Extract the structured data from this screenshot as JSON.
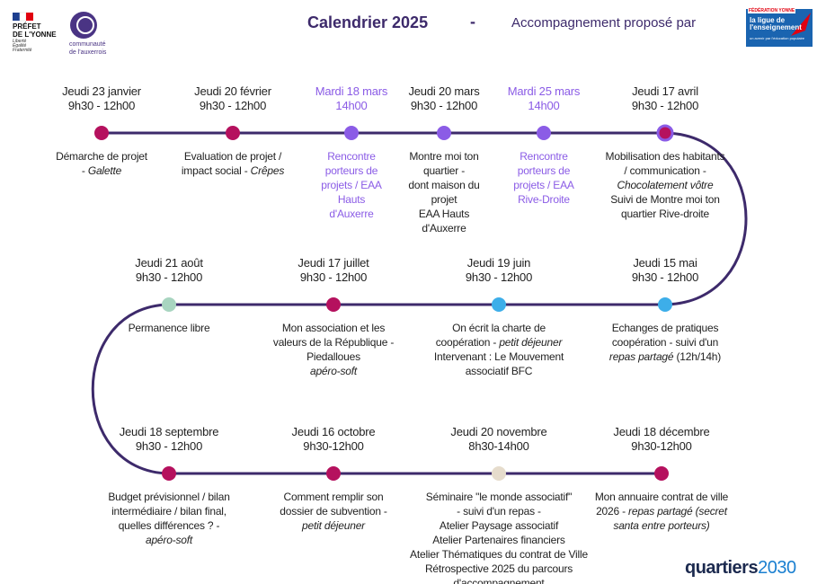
{
  "header": {
    "prefet": [
      "PRÉFET",
      "DE L'YONNE"
    ],
    "devise": [
      "Liberté",
      "Égalité",
      "Fraternité"
    ],
    "communaute": [
      "communauté",
      "de l'auxerrois"
    ],
    "title": "Calendrier 2025",
    "separator": "-",
    "subtitle": "Accompagnement proposé par",
    "ligue": {
      "federation": "FÉDÉRATION YONNE",
      "name": [
        "la ligue de",
        "l'enseignement"
      ],
      "tagline": "un avenir par l'éducation populaire"
    }
  },
  "events": [
    {
      "date": "Jeudi 23 janvier",
      "time": "9h30 - 12h00",
      "dot_color": "#b5115e",
      "text_color": "#222",
      "lines": [
        [
          "Démarche de projet"
        ],
        [
          "- ",
          {
            "italic": "Galette"
          }
        ]
      ]
    },
    {
      "date": "Jeudi 20 février",
      "time": "9h30 - 12h00",
      "dot_color": "#b5115e",
      "text_color": "#222",
      "lines": [
        [
          "Evaluation de projet /"
        ],
        [
          "impact social - ",
          {
            "italic": "Crêpes"
          }
        ]
      ]
    },
    {
      "date": "Mardi 18 mars",
      "time": "14h00",
      "dot_color": "#8b5ce6",
      "text_color": "#8b5ce6",
      "lines": [
        [
          "Rencontre"
        ],
        [
          "porteurs de"
        ],
        [
          "projets /  EAA"
        ],
        [
          "Hauts"
        ],
        [
          "d'Auxerre"
        ]
      ]
    },
    {
      "date": "Jeudi 20 mars",
      "time": "9h30 - 12h00",
      "dot_color": "#8b5ce6",
      "text_color": "#222",
      "lines": [
        [
          "Montre moi ton"
        ],
        [
          "quartier -"
        ],
        [
          "dont maison du"
        ],
        [
          "projet"
        ],
        [
          "EAA Hauts"
        ],
        [
          "d'Auxerre"
        ]
      ]
    },
    {
      "date": "Mardi 25 mars",
      "time": "14h00",
      "dot_color": "#8b5ce6",
      "text_color": "#8b5ce6",
      "lines": [
        [
          "Rencontre"
        ],
        [
          "porteurs de"
        ],
        [
          "projets /  EAA"
        ],
        [
          "Rive-Droite"
        ]
      ]
    },
    {
      "date": "Jeudi 17 avril",
      "time": "9h30 - 12h00",
      "dot_color": "#b5115e",
      "dot_ring": "#8b5ce6",
      "text_color": "#222",
      "lines": [
        [
          "Mobilisation des habitants"
        ],
        [
          "/ communication -"
        ],
        [
          {
            "italic": "Chocolatement vôtre"
          }
        ],
        [
          "Suivi de Montre moi ton"
        ],
        [
          "quartier Rive-droite"
        ]
      ]
    },
    {
      "date": "Jeudi 15 mai",
      "time": "9h30 - 12h00",
      "dot_color": "#3daee9",
      "text_color": "#222",
      "lines": [
        [
          "Echanges de pratiques"
        ],
        [
          "coopération - suivi d'un"
        ],
        [
          {
            "italic": "repas partagé"
          },
          " (12h/14h)"
        ]
      ]
    },
    {
      "date": "Jeudi 19 juin",
      "time": "9h30 - 12h00",
      "dot_color": "#3daee9",
      "text_color": "#222",
      "lines": [
        [
          "On écrit la charte de"
        ],
        [
          "coopération - ",
          {
            "italic": "petit déjeuner"
          }
        ],
        [
          "Intervenant : Le Mouvement"
        ],
        [
          "associatif BFC"
        ]
      ]
    },
    {
      "date": "Jeudi 17 juillet",
      "time": "9h30 - 12h00",
      "dot_color": "#b5115e",
      "text_color": "#222",
      "lines": [
        [
          "Mon association et les"
        ],
        [
          "valeurs de la République -"
        ],
        [
          "Piedalloues"
        ],
        [
          {
            "italic": "apéro-soft"
          }
        ]
      ]
    },
    {
      "date": "Jeudi 21 août",
      "time": "9h30 - 12h00",
      "dot_color": "#a8d5c0",
      "text_color": "#222",
      "lines": [
        [
          "Permanence libre"
        ]
      ]
    },
    {
      "date": "Jeudi 18 septembre",
      "time": "9h30 - 12h00",
      "dot_color": "#b5115e",
      "text_color": "#222",
      "lines": [
        [
          "Budget prévisionnel / bilan"
        ],
        [
          "intermédiaire / bilan final,"
        ],
        [
          "quelles différences ? -"
        ],
        [
          {
            "italic": "apéro-soft"
          }
        ]
      ]
    },
    {
      "date": "Jeudi 16 octobre",
      "time": "9h30-12h00",
      "dot_color": "#b5115e",
      "text_color": "#222",
      "lines": [
        [
          "Comment remplir son"
        ],
        [
          "dossier de subvention -"
        ],
        [
          {
            "italic": "petit déjeuner"
          }
        ]
      ]
    },
    {
      "date": "Jeudi 20 novembre",
      "time": "8h30-14h00",
      "dot_color": "#e6dccc",
      "text_color": "#222",
      "lines": [
        [
          "Séminaire \"le monde associatif\""
        ],
        [
          "- suivi d'un repas -"
        ],
        [
          "Atelier Paysage associatif"
        ],
        [
          "Atelier Partenaires financiers"
        ],
        [
          "Atelier Thématiques du contrat de Ville"
        ],
        [
          "Rétrospective 2025 du parcours"
        ],
        [
          "d'accompagnement"
        ]
      ]
    },
    {
      "date": "Jeudi 18 décembre",
      "time": "9h30-12h00",
      "dot_color": "#b5115e",
      "text_color": "#222",
      "lines": [
        [
          "Mon annuaire contrat de ville"
        ],
        [
          "2026 - ",
          {
            "italic": "repas partagé (secret"
          }
        ],
        [
          {
            "italic": "santa entre porteurs)"
          }
        ]
      ]
    }
  ],
  "footer": {
    "brand": "quartiers",
    "year": "2030"
  }
}
